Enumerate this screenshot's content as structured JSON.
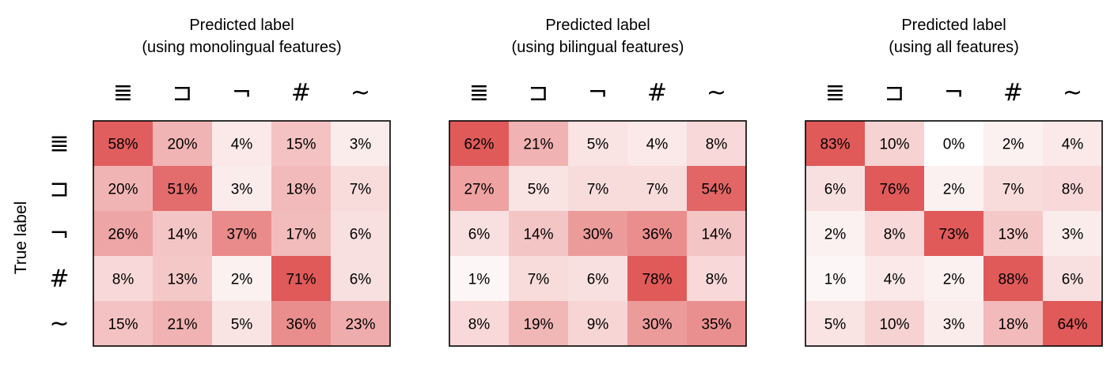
{
  "y_axis_label": "True label",
  "chart_data": [
    {
      "type": "heatmap",
      "title": [
        "Predicted label",
        "(using monolingual features)"
      ],
      "x_categories": [
        "≣",
        "⊐",
        "¬",
        "#",
        "~"
      ],
      "y_categories": [
        "≣",
        "⊐",
        "¬",
        "#",
        "~"
      ],
      "values": [
        [
          58,
          20,
          4,
          15,
          3
        ],
        [
          20,
          51,
          3,
          18,
          7
        ],
        [
          26,
          14,
          37,
          17,
          6
        ],
        [
          8,
          13,
          2,
          71,
          6
        ],
        [
          15,
          21,
          5,
          36,
          23
        ]
      ],
      "labels": [
        [
          "58%",
          "20%",
          "4%",
          "15%",
          "3%"
        ],
        [
          "20%",
          "51%",
          "3%",
          "18%",
          "7%"
        ],
        [
          "26%",
          "14%",
          "37%",
          "17%",
          "6%"
        ],
        [
          "8%",
          "13%",
          "2%",
          "71%",
          "6%"
        ],
        [
          "15%",
          "21%",
          "5%",
          "36%",
          "23%"
        ]
      ]
    },
    {
      "type": "heatmap",
      "title": [
        "Predicted label",
        "(using bilingual features)"
      ],
      "x_categories": [
        "≣",
        "⊐",
        "¬",
        "#",
        "~"
      ],
      "y_categories": [
        "≣",
        "⊐",
        "¬",
        "#",
        "~"
      ],
      "values": [
        [
          62,
          21,
          5,
          4,
          8
        ],
        [
          27,
          5,
          7,
          7,
          54
        ],
        [
          6,
          14,
          30,
          36,
          14
        ],
        [
          1,
          7,
          6,
          78,
          8
        ],
        [
          8,
          19,
          9,
          30,
          35
        ]
      ],
      "labels": [
        [
          "62%",
          "21%",
          "5%",
          "4%",
          "8%"
        ],
        [
          "27%",
          "5%",
          "7%",
          "7%",
          "54%"
        ],
        [
          "6%",
          "14%",
          "30%",
          "36%",
          "14%"
        ],
        [
          "1%",
          "7%",
          "6%",
          "78%",
          "8%"
        ],
        [
          "8%",
          "19%",
          "9%",
          "30%",
          "35%"
        ]
      ]
    },
    {
      "type": "heatmap",
      "title": [
        "Predicted label",
        "(using all features)"
      ],
      "x_categories": [
        "≣",
        "⊐",
        "¬",
        "#",
        "~"
      ],
      "y_categories": [
        "≣",
        "⊐",
        "¬",
        "#",
        "~"
      ],
      "values": [
        [
          83,
          10,
          0,
          2,
          4
        ],
        [
          6,
          76,
          2,
          7,
          8
        ],
        [
          2,
          8,
          73,
          13,
          3
        ],
        [
          1,
          4,
          2,
          88,
          6
        ],
        [
          5,
          10,
          3,
          18,
          64
        ]
      ],
      "labels": [
        [
          "83%",
          "10%",
          "0%",
          "2%",
          "4%"
        ],
        [
          "6%",
          "76%",
          "2%",
          "7%",
          "8%"
        ],
        [
          "2%",
          "8%",
          "73%",
          "13%",
          "3%"
        ],
        [
          "1%",
          "4%",
          "2%",
          "88%",
          "6%"
        ],
        [
          "5%",
          "10%",
          "3%",
          "18%",
          "64%"
        ]
      ]
    }
  ],
  "colors": {
    "low": "#ffffff",
    "high": "#e05a5a"
  }
}
